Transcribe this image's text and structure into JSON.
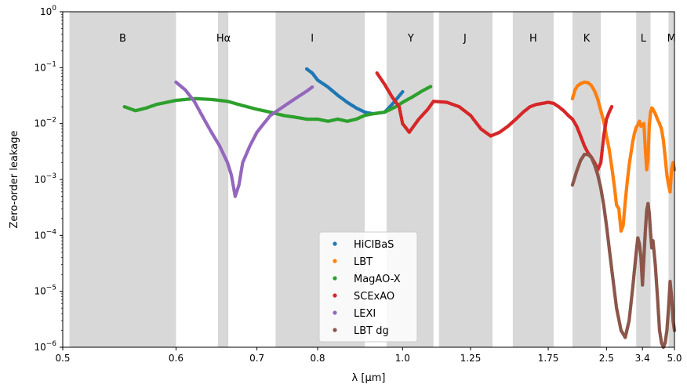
{
  "chart_data": {
    "type": "scatter",
    "xlabel": "λ [μm]",
    "ylabel": "Zero-order leakage",
    "xscale": "reciprocal",
    "yscale": "log",
    "xlim": [
      0.5,
      5.0
    ],
    "ylim": [
      1e-06,
      1
    ],
    "x_ticks": [
      {
        "value": 0.5,
        "label": "0.5"
      },
      {
        "value": 0.6,
        "label": "0.6"
      },
      {
        "value": 0.7,
        "label": "0.7"
      },
      {
        "value": 0.8,
        "label": "0.8"
      },
      {
        "value": 1.0,
        "label": "1.0"
      },
      {
        "value": 1.25,
        "label": "1.25"
      },
      {
        "value": 1.75,
        "label": "1.75"
      },
      {
        "value": 2.5,
        "label": "2.5"
      },
      {
        "value": 3.4,
        "label": "3.4"
      },
      {
        "value": 5.0,
        "label": "5.0"
      }
    ],
    "y_ticks": [
      {
        "value": 1e-06,
        "base": "10",
        "exp": "−6"
      },
      {
        "value": 1e-05,
        "base": "10",
        "exp": "−5"
      },
      {
        "value": 0.0001,
        "base": "10",
        "exp": "−4"
      },
      {
        "value": 0.001,
        "base": "10",
        "exp": "−3"
      },
      {
        "value": 0.01,
        "base": "10",
        "exp": "−2"
      },
      {
        "value": 0.1,
        "base": "10",
        "exp": "−1"
      },
      {
        "value": 1,
        "base": "10",
        "exp": "0"
      }
    ],
    "bands": [
      {
        "name": "B",
        "from": 0.505,
        "to": 0.6
      },
      {
        "name": "Hα",
        "from": 0.648,
        "to": 0.661
      },
      {
        "name": "I",
        "from": 0.728,
        "to": 0.9
      },
      {
        "name": "Y",
        "from": 0.955,
        "to": 1.1
      },
      {
        "name": "J",
        "from": 1.12,
        "to": 1.36
      },
      {
        "name": "H",
        "from": 1.48,
        "to": 1.8
      },
      {
        "name": "K",
        "from": 2.0,
        "to": 2.4
      },
      {
        "name": "L",
        "from": 3.2,
        "to": 3.7
      },
      {
        "name": "M",
        "from": 4.6,
        "to": 5.0
      }
    ],
    "band_label_positions": {
      "Hα": 0.655,
      "I": 0.79,
      "Y": 1.025,
      "J": 1.225
    },
    "grid": false,
    "legend_position": "lower-center",
    "series": [
      {
        "name": "HiCIBaS",
        "color": "#1f77b4",
        "x": [
          0.78,
          0.79,
          0.8,
          0.82,
          0.84,
          0.86,
          0.88,
          0.9,
          0.92,
          0.95,
          0.97,
          1.0
        ],
        "y": [
          0.095,
          0.08,
          0.06,
          0.045,
          0.032,
          0.024,
          0.019,
          0.016,
          0.015,
          0.016,
          0.022,
          0.037
        ]
      },
      {
        "name": "LBT",
        "color": "#ff7f0e",
        "x": [
          2.0,
          2.03,
          2.06,
          2.1,
          2.15,
          2.2,
          2.25,
          2.3,
          2.35,
          2.4,
          2.45,
          2.5,
          2.55,
          2.6,
          2.65,
          2.7,
          2.75,
          2.8,
          2.85,
          2.9,
          2.95,
          3.0,
          3.05,
          3.1,
          3.15,
          3.2,
          3.25,
          3.3,
          3.35,
          3.4,
          3.45,
          3.5,
          3.55,
          3.6,
          3.65,
          3.7,
          3.75,
          3.8,
          3.9,
          4.0,
          4.1,
          4.2,
          4.3,
          4.4,
          4.5,
          4.6,
          4.7,
          4.8,
          4.9,
          5.0
        ],
        "y": [
          0.028,
          0.04,
          0.047,
          0.052,
          0.055,
          0.054,
          0.048,
          0.038,
          0.027,
          0.017,
          0.011,
          0.006,
          0.0035,
          0.0017,
          0.0008,
          0.00035,
          0.0003,
          0.00012,
          0.00015,
          0.0004,
          0.0009,
          0.0018,
          0.003,
          0.0048,
          0.0068,
          0.0085,
          0.0095,
          0.011,
          0.009,
          0.0095,
          0.01,
          0.0035,
          0.0015,
          0.0023,
          0.0095,
          0.016,
          0.019,
          0.018,
          0.015,
          0.012,
          0.01,
          0.008,
          0.005,
          0.0025,
          0.0012,
          0.0008,
          0.0006,
          0.0015,
          0.002,
          0.0015
        ]
      },
      {
        "name": "MagAO-X",
        "color": "#2ca02c",
        "x": [
          0.55,
          0.56,
          0.57,
          0.58,
          0.6,
          0.62,
          0.64,
          0.66,
          0.68,
          0.7,
          0.72,
          0.74,
          0.76,
          0.78,
          0.8,
          0.82,
          0.84,
          0.86,
          0.88,
          0.9,
          0.92,
          0.95,
          0.98,
          1.0,
          1.03,
          1.06,
          1.09
        ],
        "y": [
          0.02,
          0.017,
          0.019,
          0.022,
          0.026,
          0.028,
          0.027,
          0.025,
          0.021,
          0.018,
          0.016,
          0.014,
          0.013,
          0.012,
          0.012,
          0.011,
          0.012,
          0.011,
          0.012,
          0.014,
          0.015,
          0.016,
          0.02,
          0.024,
          0.03,
          0.038,
          0.046
        ]
      },
      {
        "name": "SCExAO",
        "color": "#d62728",
        "x": [
          0.93,
          0.95,
          0.97,
          0.99,
          1.0,
          1.02,
          1.05,
          1.08,
          1.1,
          1.15,
          1.2,
          1.25,
          1.3,
          1.35,
          1.4,
          1.45,
          1.5,
          1.55,
          1.6,
          1.65,
          1.7,
          1.75,
          1.8,
          1.85,
          1.9,
          1.95,
          2.0,
          2.05,
          2.1,
          2.15,
          2.2,
          2.25,
          2.3,
          2.35,
          2.4,
          2.45,
          2.5,
          2.55,
          2.6
        ],
        "y": [
          0.08,
          0.05,
          0.03,
          0.02,
          0.01,
          0.007,
          0.012,
          0.018,
          0.025,
          0.024,
          0.02,
          0.014,
          0.008,
          0.006,
          0.007,
          0.009,
          0.012,
          0.016,
          0.02,
          0.022,
          0.023,
          0.024,
          0.023,
          0.02,
          0.017,
          0.014,
          0.012,
          0.009,
          0.006,
          0.004,
          0.003,
          0.0025,
          0.002,
          0.0015,
          0.002,
          0.006,
          0.012,
          0.016,
          0.02
        ]
      },
      {
        "name": "LEXI",
        "color": "#9467bd",
        "x": [
          0.6,
          0.61,
          0.62,
          0.63,
          0.64,
          0.65,
          0.66,
          0.665,
          0.67,
          0.675,
          0.68,
          0.69,
          0.7,
          0.71,
          0.72,
          0.74,
          0.76,
          0.78,
          0.79
        ],
        "y": [
          0.055,
          0.04,
          0.025,
          0.013,
          0.007,
          0.004,
          0.002,
          0.0012,
          0.0005,
          0.0008,
          0.002,
          0.004,
          0.007,
          0.01,
          0.014,
          0.02,
          0.028,
          0.038,
          0.045
        ]
      },
      {
        "name": "LBT dg",
        "color": "#8c564b",
        "x": [
          2.0,
          2.05,
          2.1,
          2.15,
          2.2,
          2.25,
          2.3,
          2.35,
          2.4,
          2.45,
          2.5,
          2.55,
          2.6,
          2.7,
          2.8,
          2.9,
          3.0,
          3.1,
          3.2,
          3.25,
          3.3,
          3.35,
          3.4,
          3.45,
          3.5,
          3.55,
          3.6,
          3.65,
          3.7,
          3.75,
          3.8,
          3.9,
          4.0,
          4.1,
          4.2,
          4.3,
          4.4,
          4.5,
          4.6,
          4.7,
          4.8,
          4.9,
          5.0
        ],
        "y": [
          0.0008,
          0.0014,
          0.0022,
          0.0028,
          0.0028,
          0.0025,
          0.0018,
          0.0012,
          0.0007,
          0.00035,
          0.00015,
          6e-05,
          2.5e-05,
          5e-06,
          2e-06,
          1.5e-06,
          3e-06,
          1.2e-05,
          5e-05,
          9e-05,
          7e-05,
          4e-05,
          1.3e-05,
          4e-05,
          0.00012,
          0.00028,
          0.00037,
          0.00025,
          0.00011,
          6e-05,
          8e-05,
          3e-05,
          8e-06,
          2e-06,
          1.2e-06,
          1e-06,
          1.2e-06,
          2e-06,
          5e-06,
          1.5e-05,
          8e-06,
          3e-06,
          2e-06
        ]
      }
    ]
  }
}
